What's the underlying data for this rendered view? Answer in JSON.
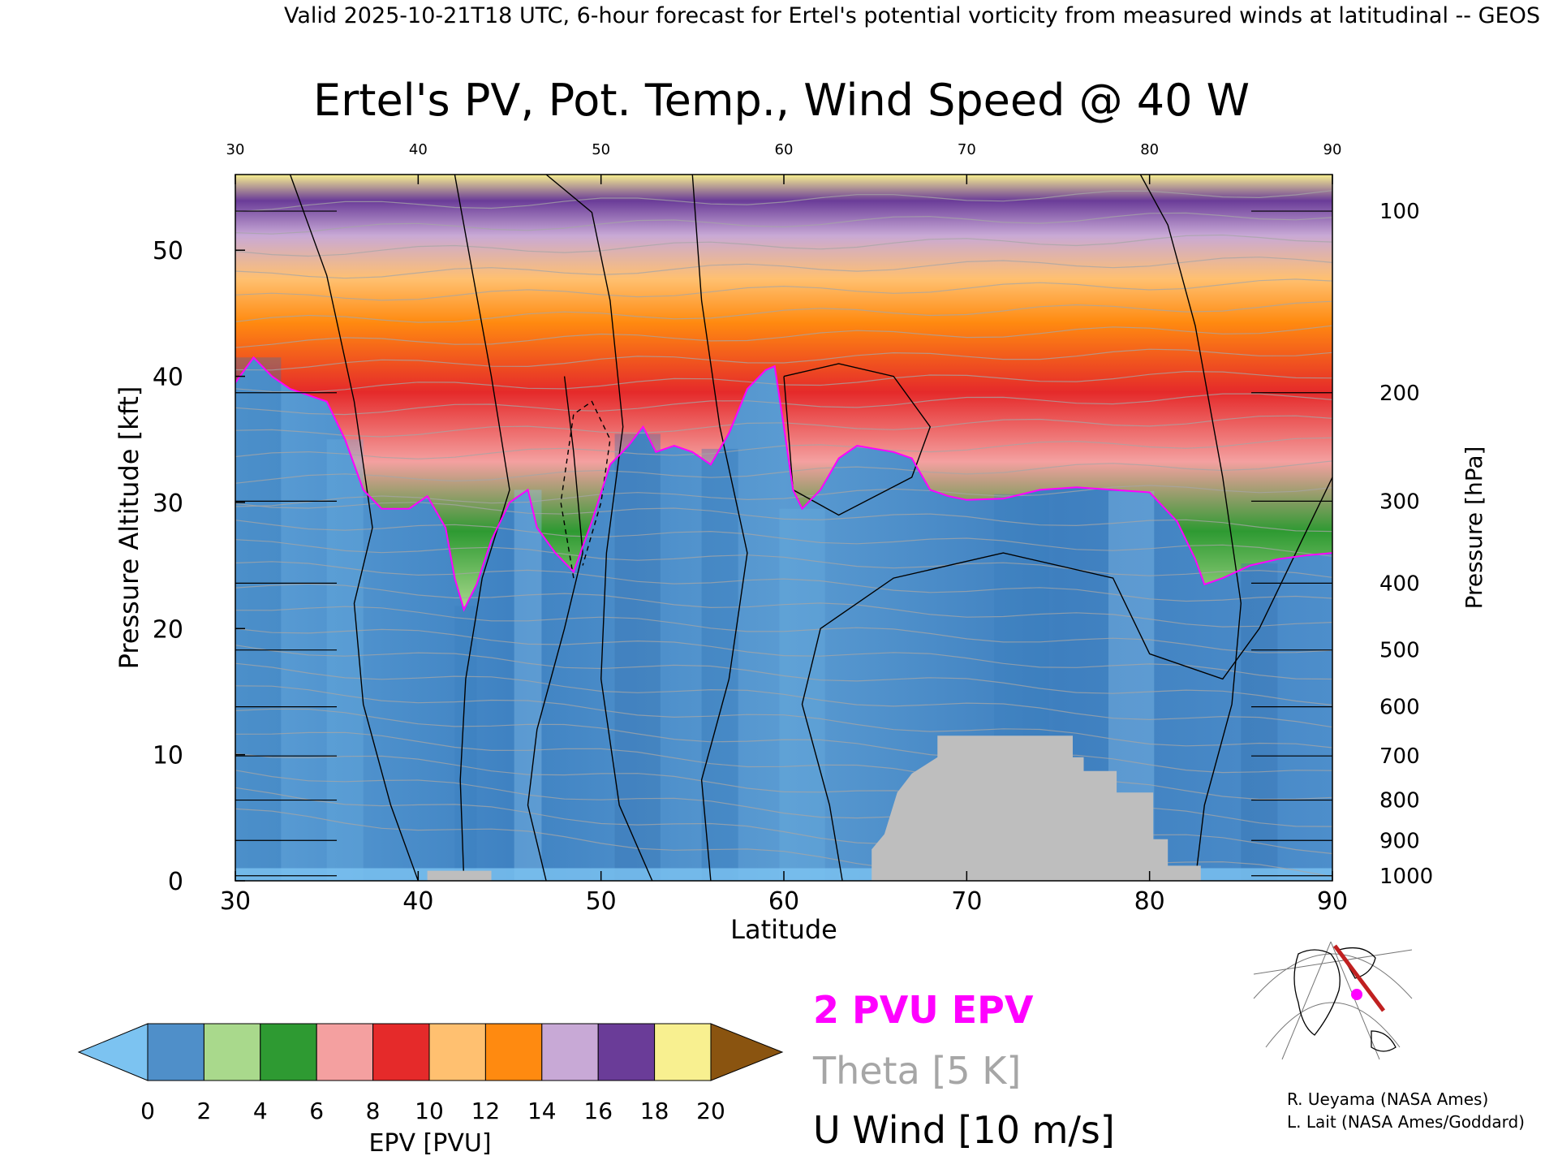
{
  "header": "Valid 2025-10-21T18 UTC, 6-hour forecast for Ertel's potential vorticity from measured winds at latitudinal -- GEOS",
  "chart_data": {
    "type": "heatmap",
    "title": "Ertel's PV, Pot. Temp., Wind Speed @ 40 W",
    "xlabel": "Latitude",
    "ylabel": "Pressure Altitude [kft]",
    "y2label": "Pressure [hPa]",
    "xlim": [
      30,
      90
    ],
    "ylim": [
      0,
      56
    ],
    "x_ticks": [
      30,
      40,
      50,
      60,
      70,
      80,
      90
    ],
    "y_ticks": [
      0,
      10,
      20,
      30,
      40,
      50
    ],
    "pressure_ticks": [
      {
        "hpa": "100",
        "kft": 53.1
      },
      {
        "hpa": "200",
        "kft": 38.7
      },
      {
        "hpa": "300",
        "kft": 30.1
      },
      {
        "hpa": "400",
        "kft": 23.6
      },
      {
        "hpa": "500",
        "kft": 18.3
      },
      {
        "hpa": "600",
        "kft": 13.8
      },
      {
        "hpa": "700",
        "kft": 9.9
      },
      {
        "hpa": "800",
        "kft": 6.4
      },
      {
        "hpa": "900",
        "kft": 3.2
      },
      {
        "hpa": "1000",
        "kft": 0.4
      }
    ],
    "tropopause_2pvu": [
      [
        30,
        39.5
      ],
      [
        31,
        41.5
      ],
      [
        32,
        40
      ],
      [
        33,
        39
      ],
      [
        35,
        38
      ],
      [
        36,
        35
      ],
      [
        37,
        31
      ],
      [
        38,
        29.5
      ],
      [
        39.5,
        29.5
      ],
      [
        40.5,
        30.5
      ],
      [
        41.5,
        28
      ],
      [
        42,
        24
      ],
      [
        42.5,
        21.5
      ],
      [
        43.2,
        23.5
      ],
      [
        44,
        27
      ],
      [
        45,
        30
      ],
      [
        46,
        31
      ],
      [
        46.5,
        28
      ],
      [
        47.5,
        26
      ],
      [
        48.5,
        24.5
      ],
      [
        49.5,
        28.5
      ],
      [
        50.5,
        33
      ],
      [
        51.5,
        34.5
      ],
      [
        52.3,
        36
      ],
      [
        53,
        34
      ],
      [
        54,
        34.5
      ],
      [
        55,
        34
      ],
      [
        56,
        33
      ],
      [
        57,
        35.5
      ],
      [
        58,
        39
      ],
      [
        59,
        40.5
      ],
      [
        59.5,
        40.8
      ],
      [
        60,
        36
      ],
      [
        60.5,
        31
      ],
      [
        61,
        29.5
      ],
      [
        62,
        31
      ],
      [
        63,
        33.5
      ],
      [
        64,
        34.5
      ],
      [
        66,
        34
      ],
      [
        67,
        33.5
      ],
      [
        68,
        31
      ],
      [
        69,
        30.5
      ],
      [
        70,
        30.2
      ],
      [
        72,
        30.3
      ],
      [
        74,
        31
      ],
      [
        76,
        31.2
      ],
      [
        78,
        31
      ],
      [
        80,
        30.8
      ],
      [
        81.5,
        28.5
      ],
      [
        82.5,
        25.5
      ],
      [
        83,
        23.5
      ],
      [
        84,
        24
      ],
      [
        85.5,
        25
      ],
      [
        87,
        25.5
      ],
      [
        88.5,
        25.8
      ],
      [
        90,
        26
      ]
    ],
    "surface_mask": [
      [
        64.8,
        0
      ],
      [
        64.8,
        2.5
      ],
      [
        65.5,
        3.7
      ],
      [
        66.2,
        7
      ],
      [
        67,
        8.5
      ],
      [
        68.4,
        9.8
      ],
      [
        68.4,
        11.5
      ],
      [
        75.8,
        11.5
      ],
      [
        75.8,
        9.8
      ],
      [
        76.4,
        9.8
      ],
      [
        76.4,
        8.7
      ],
      [
        78.2,
        8.7
      ],
      [
        78.2,
        7
      ],
      [
        80.2,
        7
      ],
      [
        80.2,
        3.3
      ],
      [
        81,
        3.3
      ],
      [
        81,
        1.2
      ],
      [
        82.8,
        1.2
      ],
      [
        82.8,
        0
      ]
    ],
    "small_mask": [
      [
        40.5,
        0
      ],
      [
        40.5,
        0.8
      ],
      [
        44,
        0.8
      ],
      [
        44,
        0
      ]
    ],
    "legend": {
      "epv_label": "2 PVU EPV",
      "theta_label": "Theta [5 K]",
      "wind_label": "U Wind [10 m/s]"
    },
    "colorbar": {
      "label": "EPV [PVU]",
      "ticks": [
        "0",
        "2",
        "4",
        "6",
        "8",
        "10",
        "12",
        "14",
        "16",
        "18",
        "20"
      ],
      "colors": [
        "#4f8fc9",
        "#a9d98c",
        "#2e9a32",
        "#f4a0a0",
        "#e52a2a",
        "#ffc070",
        "#ff8a10",
        "#c8a9d6",
        "#6a3c98",
        "#f8f090"
      ],
      "under_color": "#7cc3f1",
      "over_color": "#8a5410"
    },
    "colors": {
      "tropopause": "#ff00ff",
      "theta": "#a6a6a6",
      "wind": "#000000",
      "terrain": "#bebebe"
    }
  },
  "credits": [
    "R. Ueyama (NASA Ames)",
    "L. Lait (NASA Ames/Goddard)"
  ]
}
